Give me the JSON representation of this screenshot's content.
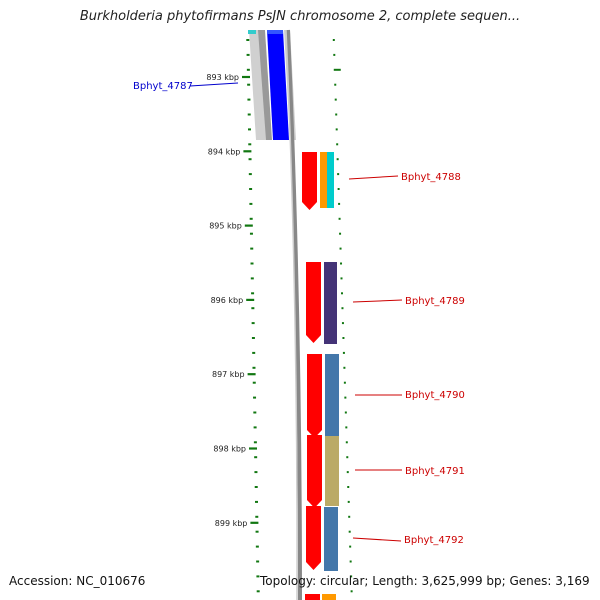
{
  "title": "Burkholderia phytofirmans PsJN chromosome 2, complete sequen...",
  "footer": {
    "accession": "Accession: NC_010676",
    "topology": "Topology: circular; Length: 3,625,999 bp; Genes: 3,169"
  },
  "ruler": {
    "unit": "kbp",
    "ticks": [
      {
        "kbp": 893,
        "label": "893 kbp"
      },
      {
        "kbp": 894,
        "label": "894 kbp"
      },
      {
        "kbp": 895,
        "label": "895 kbp"
      },
      {
        "kbp": 896,
        "label": "896 kbp"
      },
      {
        "kbp": 897,
        "label": "897 kbp"
      },
      {
        "kbp": 898,
        "label": "898 kbp"
      },
      {
        "kbp": 899,
        "label": "899 kbp"
      }
    ]
  },
  "genes": [
    {
      "label": "Bphyt_4787",
      "strand": "reverse",
      "color": "#0000cc"
    },
    {
      "label": "Bphyt_4788",
      "strand": "forward",
      "color": "#cc0000"
    },
    {
      "label": "Bphyt_4789",
      "strand": "forward",
      "color": "#cc0000"
    },
    {
      "label": "Bphyt_4790",
      "strand": "forward",
      "color": "#cc0000"
    },
    {
      "label": "Bphyt_4791",
      "strand": "forward",
      "color": "#cc0000"
    },
    {
      "label": "Bphyt_4792",
      "strand": "forward",
      "color": "#cc0000"
    }
  ],
  "colors": {
    "backbone": "#888888",
    "ticks": "#117711",
    "gene_forward": "#ff0000",
    "gene_reverse": "#0000ff",
    "label_forward": "#cc0000",
    "label_reverse": "#0000cc",
    "cog_orange": "#ff9900",
    "cog_cyan": "#00cccc",
    "cog_purple": "#443377",
    "cog_steel": "#4477aa",
    "cog_khaki": "#bbaa66",
    "cog_grey": "#bbbbbb"
  }
}
